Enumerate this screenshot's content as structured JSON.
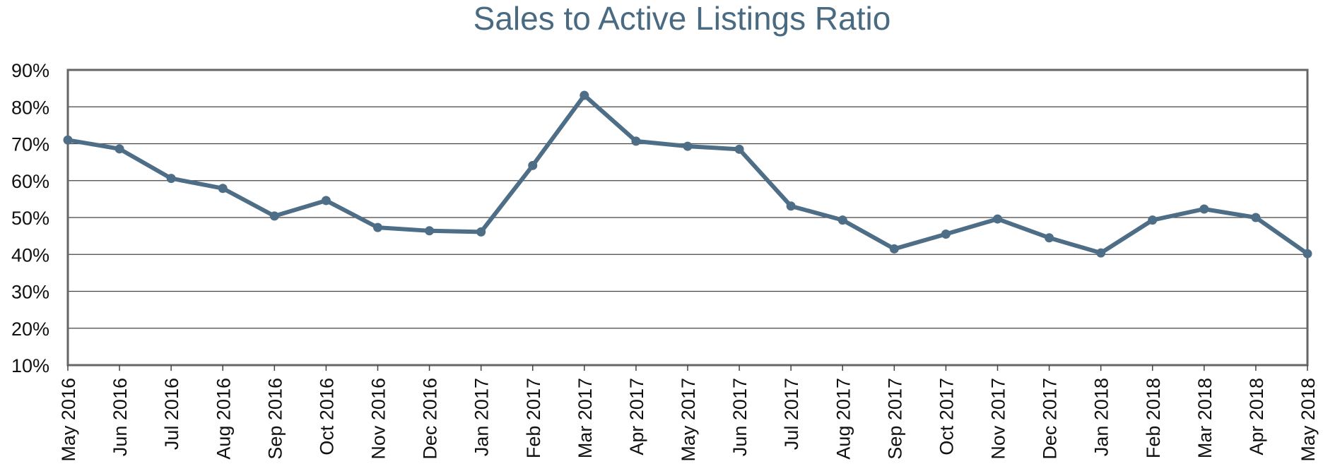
{
  "chart_data": {
    "type": "line",
    "title": "Sales to Active Listings Ratio",
    "xlabel": "",
    "ylabel": "",
    "ylim": [
      10,
      90
    ],
    "y_ticks": [
      10,
      20,
      30,
      40,
      50,
      60,
      70,
      80,
      90
    ],
    "y_tick_labels": [
      "10%",
      "20%",
      "30%",
      "40%",
      "50%",
      "60%",
      "70%",
      "80%",
      "90%"
    ],
    "grid": true,
    "legend": "none",
    "colors": {
      "line": "#4d6e86",
      "title": "#4a6a82"
    },
    "categories": [
      "May 2016",
      "Jun 2016",
      "Jul 2016",
      "Aug 2016",
      "Sep 2016",
      "Oct 2016",
      "Nov 2016",
      "Dec 2016",
      "Jan 2017",
      "Feb 2017",
      "Mar 2017",
      "Apr 2017",
      "May 2017",
      "Jun 2017",
      "Jul 2017",
      "Aug 2017",
      "Sep 2017",
      "Oct 2017",
      "Nov 2017",
      "Dec 2017",
      "Jan 2018",
      "Feb 2018",
      "Mar 2018",
      "Apr 2018",
      "May 2018"
    ],
    "series": [
      {
        "values": [
          71.0,
          68.6,
          60.6,
          57.9,
          50.4,
          54.6,
          47.3,
          46.4,
          46.1,
          64.1,
          83.1,
          70.7,
          69.3,
          68.5,
          53.1,
          49.3,
          41.5,
          45.5,
          49.6,
          44.5,
          40.4,
          49.3,
          52.3,
          50.0,
          40.2
        ]
      }
    ]
  }
}
